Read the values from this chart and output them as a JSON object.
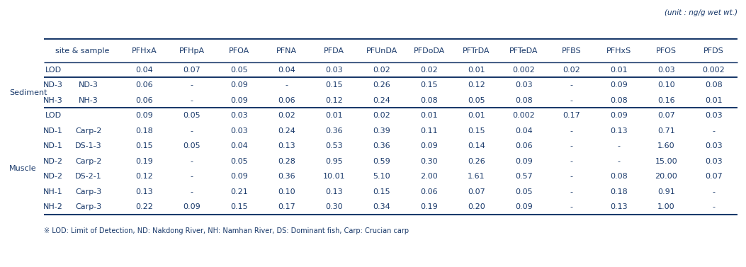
{
  "unit_text": "(unit : ng/g wet wt.)",
  "headers": [
    "site & sample",
    "PFHxA",
    "PFHpA",
    "PFOA",
    "PFNA",
    "PFDA",
    "PFUnDA",
    "PFDoDA",
    "PFTrDA",
    "PFTeDA",
    "PFBS",
    "PFHxS",
    "PFOS",
    "PFDS"
  ],
  "rows": [
    {
      "group": "",
      "site": "LOD",
      "sample": "",
      "values": [
        "0.04",
        "0.07",
        "0.05",
        "0.04",
        "0.03",
        "0.02",
        "0.02",
        "0.01",
        "0.002",
        "0.02",
        "0.01",
        "0.03",
        "0.002"
      ],
      "is_lod": true,
      "section": "top"
    },
    {
      "group": "Sediment",
      "site": "ND-3",
      "sample": "ND-3",
      "values": [
        "0.06",
        "-",
        "0.09",
        "-",
        "0.15",
        "0.26",
        "0.15",
        "0.12",
        "0.03",
        "-",
        "0.09",
        "0.10",
        "0.08"
      ],
      "is_lod": false,
      "section": "sediment"
    },
    {
      "group": "",
      "site": "NH-3",
      "sample": "NH-3",
      "values": [
        "0.06",
        "-",
        "0.09",
        "0.06",
        "0.12",
        "0.24",
        "0.08",
        "0.05",
        "0.08",
        "-",
        "0.08",
        "0.16",
        "0.01"
      ],
      "is_lod": false,
      "section": "sediment"
    },
    {
      "group": "",
      "site": "LOD",
      "sample": "",
      "values": [
        "0.09",
        "0.05",
        "0.03",
        "0.02",
        "0.01",
        "0.02",
        "0.01",
        "0.01",
        "0.002",
        "0.17",
        "0.09",
        "0.07",
        "0.03"
      ],
      "is_lod": true,
      "section": "muscle_lod"
    },
    {
      "group": "",
      "site": "ND-1",
      "sample": "Carp-2",
      "values": [
        "0.18",
        "-",
        "0.03",
        "0.24",
        "0.36",
        "0.39",
        "0.11",
        "0.15",
        "0.04",
        "-",
        "0.13",
        "0.71",
        "-"
      ],
      "is_lod": false,
      "section": "muscle"
    },
    {
      "group": "",
      "site": "ND-1",
      "sample": "DS-1-3",
      "values": [
        "0.15",
        "0.05",
        "0.04",
        "0.13",
        "0.53",
        "0.36",
        "0.09",
        "0.14",
        "0.06",
        "-",
        "-",
        "1.60",
        "0.03"
      ],
      "is_lod": false,
      "section": "muscle"
    },
    {
      "group": "Muscle",
      "site": "ND-2",
      "sample": "Carp-2",
      "values": [
        "0.19",
        "-",
        "0.05",
        "0.28",
        "0.95",
        "0.59",
        "0.30",
        "0.26",
        "0.09",
        "-",
        "-",
        "15.00",
        "0.03"
      ],
      "is_lod": false,
      "section": "muscle"
    },
    {
      "group": "",
      "site": "ND-2",
      "sample": "DS-2-1",
      "values": [
        "0.12",
        "-",
        "0.09",
        "0.36",
        "10.01",
        "5.10",
        "2.00",
        "1.61",
        "0.57",
        "-",
        "0.08",
        "20.00",
        "0.07"
      ],
      "is_lod": false,
      "section": "muscle"
    },
    {
      "group": "",
      "site": "NH-1",
      "sample": "Carp-3",
      "values": [
        "0.13",
        "-",
        "0.21",
        "0.10",
        "0.13",
        "0.15",
        "0.06",
        "0.07",
        "0.05",
        "-",
        "0.18",
        "0.91",
        "-"
      ],
      "is_lod": false,
      "section": "muscle"
    },
    {
      "group": "",
      "site": "NH-2",
      "sample": "Carp-3",
      "values": [
        "0.22",
        "0.09",
        "0.15",
        "0.17",
        "0.30",
        "0.34",
        "0.19",
        "0.20",
        "0.09",
        "-",
        "0.13",
        "1.00",
        "-"
      ],
      "is_lod": false,
      "section": "muscle"
    }
  ],
  "footnote": "※ LOD: Limit of Detection, ND: Nakdong River, NH: Namhan River, DS: Dominant fish, Carp: Crucian carp",
  "text_color": "#1a3a6b",
  "line_color": "#1a3a6b",
  "bg_color": "#ffffff",
  "font_size": 8.0,
  "figwidth": 10.53,
  "figheight": 3.77,
  "dpi": 100
}
